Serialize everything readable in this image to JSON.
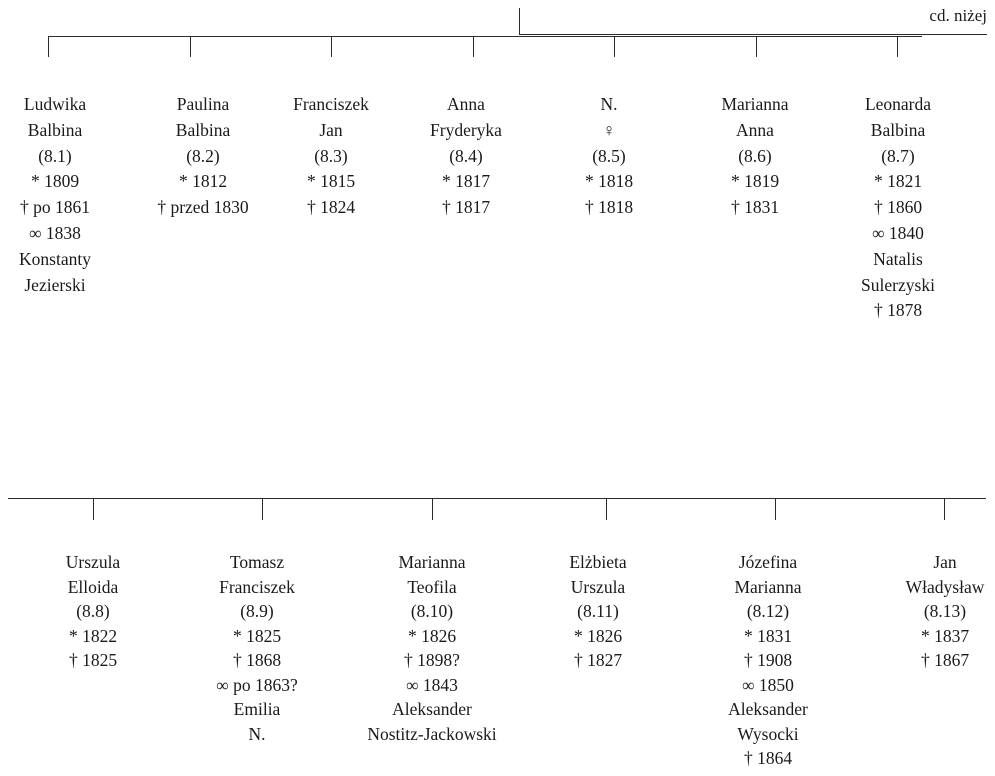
{
  "continuation_note": "cd. niżej",
  "generation_1": [
    {
      "lines": [
        "Ludwika",
        "Balbina",
        "(8.1)",
        "* 1809",
        "† po 1861",
        "∞ 1838",
        "Konstanty",
        "Jezierski"
      ]
    },
    {
      "lines": [
        "Paulina",
        "Balbina",
        "(8.2)",
        "* 1812",
        "† przed 1830"
      ]
    },
    {
      "lines": [
        "Franciszek",
        "Jan",
        "(8.3)",
        "* 1815",
        "† 1824"
      ]
    },
    {
      "lines": [
        "Anna",
        "Fryderyka",
        "(8.4)",
        "* 1817",
        "† 1817"
      ]
    },
    {
      "lines": [
        "N.",
        "♀",
        "(8.5)",
        "* 1818",
        "† 1818"
      ]
    },
    {
      "lines": [
        "Marianna",
        "Anna",
        "(8.6)",
        "* 1819",
        "† 1831"
      ]
    },
    {
      "lines": [
        "Leonarda",
        "Balbina",
        "(8.7)",
        "* 1821",
        "† 1860",
        "∞ 1840",
        "Natalis",
        "Sulerzyski",
        "† 1878"
      ]
    }
  ],
  "generation_2": [
    {
      "lines": [
        "Urszula",
        "Elloida",
        "(8.8)",
        "* 1822",
        "† 1825"
      ]
    },
    {
      "lines": [
        "Tomasz",
        "Franciszek",
        "(8.9)",
        "* 1825",
        "† 1868",
        "∞ po 1863?",
        "Emilia",
        "N."
      ]
    },
    {
      "lines": [
        "Marianna",
        "Teofila",
        "(8.10)",
        "* 1826",
        "† 1898?",
        "∞ 1843",
        "Aleksander",
        "Nostitz-Jackowski"
      ]
    },
    {
      "lines": [
        "Elżbieta",
        "Urszula",
        "(8.11)",
        "* 1826",
        "† 1827"
      ]
    },
    {
      "lines": [
        "Józefina",
        "Marianna",
        "(8.12)",
        "* 1831",
        "† 1908",
        "∞ 1850",
        "Aleksander",
        "Wysocki",
        "† 1864"
      ]
    },
    {
      "lines": [
        "Jan",
        "Władysław",
        "(8.13)",
        "* 1837",
        "† 1867"
      ]
    }
  ]
}
